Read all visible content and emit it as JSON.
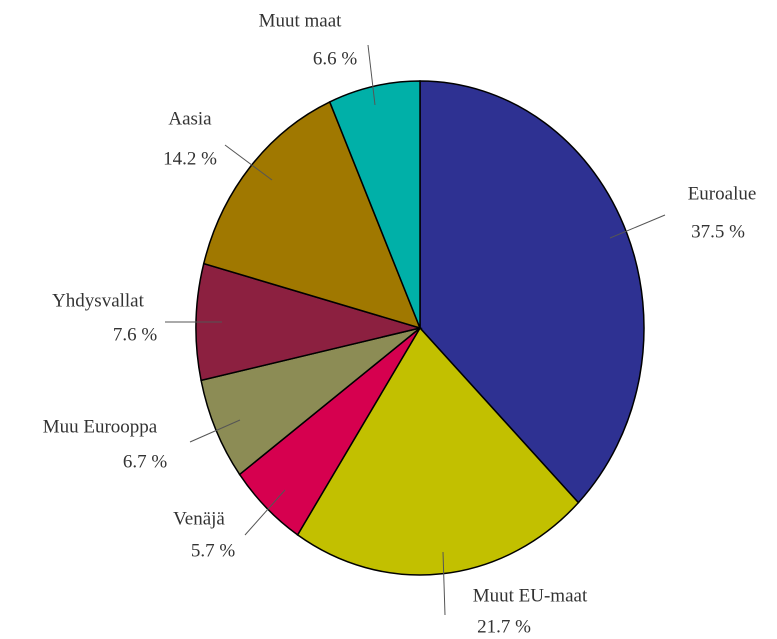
{
  "chart_data": {
    "type": "pie",
    "categories": [
      "Euroalue",
      "Muut EU-maat",
      "Venäjä",
      "Muu Eurooppa",
      "Yhdysvallat",
      "Aasia",
      "Muut maat"
    ],
    "values": [
      37.5,
      21.7,
      5.7,
      6.7,
      7.6,
      14.2,
      6.6
    ],
    "value_labels": [
      "37.5 %",
      "21.7 %",
      "5.7 %",
      "6.7 %",
      "7.6 %",
      "14.2 %",
      "6.6 %"
    ],
    "colors": [
      "#2e3192",
      "#c2c000",
      "#d6004f",
      "#8c8c55",
      "#8c2040",
      "#a07800",
      "#00b0a8"
    ]
  }
}
